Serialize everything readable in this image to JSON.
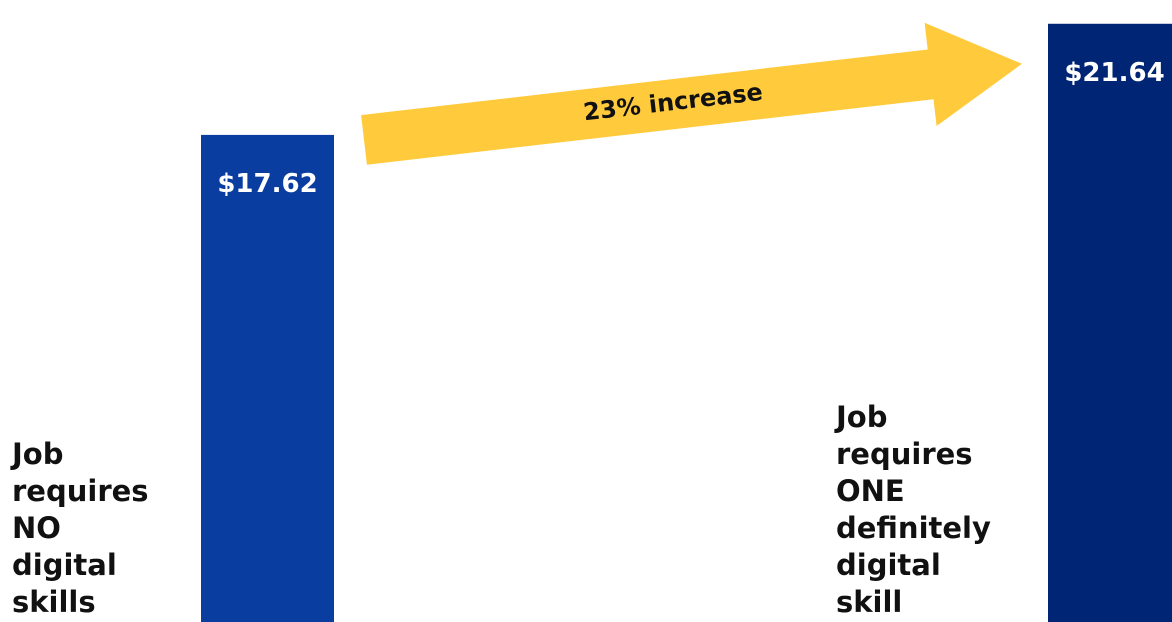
{
  "chart_data": {
    "type": "bar",
    "categories": [
      "Job requires NO digital skills",
      "Job requires ONE definitely digital skill"
    ],
    "category_lines": [
      [
        "Job",
        "requires",
        "NO",
        "digital",
        "skills"
      ],
      [
        "Job",
        "requires",
        "ONE",
        "definitely",
        "digital",
        "skill"
      ]
    ],
    "values": [
      17.62,
      21.64
    ],
    "value_labels": [
      "$17.62",
      "$21.64"
    ],
    "bar_colors": [
      "#0A3DA0",
      "#002574"
    ],
    "annotation": {
      "text": "23% increase",
      "color": "#FFCB3D"
    },
    "ylim": [
      0,
      22.5
    ],
    "grid": false,
    "legend": "none"
  }
}
